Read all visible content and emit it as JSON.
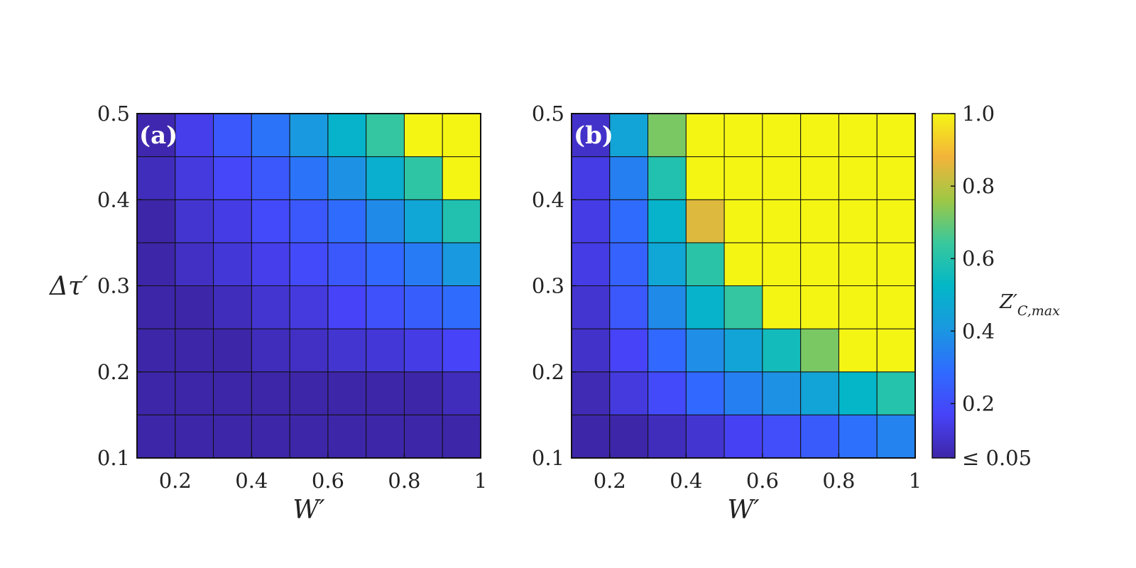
{
  "chart_data": [
    {
      "type": "heatmap",
      "panel_label": "(a)",
      "xlabel": "W′",
      "ylabel": "Δτ′",
      "x_ticks": [
        "0.2",
        "0.4",
        "0.6",
        "0.8",
        "1"
      ],
      "y_ticks": [
        "0.1",
        "0.2",
        "0.3",
        "0.4",
        "0.5"
      ],
      "xlim": [
        0.1,
        1.0
      ],
      "ylim": [
        0.1,
        0.5
      ],
      "x": [
        0.15,
        0.25,
        0.35,
        0.45,
        0.55,
        0.65,
        0.75,
        0.85,
        0.95
      ],
      "y": [
        0.125,
        0.175,
        0.225,
        0.275,
        0.325,
        0.375,
        0.425,
        0.475
      ],
      "values": [
        [
          0.05,
          0.05,
          0.05,
          0.05,
          0.05,
          0.05,
          0.05,
          0.05,
          0.05
        ],
        [
          0.05,
          0.05,
          0.05,
          0.05,
          0.05,
          0.05,
          0.05,
          0.05,
          0.08
        ],
        [
          0.05,
          0.05,
          0.05,
          0.08,
          0.09,
          0.11,
          0.12,
          0.14,
          0.17
        ],
        [
          0.05,
          0.05,
          0.08,
          0.11,
          0.13,
          0.17,
          0.21,
          0.25,
          0.29
        ],
        [
          0.05,
          0.09,
          0.12,
          0.15,
          0.19,
          0.23,
          0.28,
          0.33,
          0.41
        ],
        [
          0.05,
          0.11,
          0.14,
          0.19,
          0.23,
          0.29,
          0.37,
          0.46,
          0.59
        ],
        [
          0.08,
          0.13,
          0.18,
          0.23,
          0.31,
          0.39,
          0.49,
          0.62,
          1.0
        ],
        [
          0.06,
          0.15,
          0.23,
          0.31,
          0.41,
          0.51,
          0.63,
          1.0,
          1.0
        ]
      ],
      "grid": true
    },
    {
      "type": "heatmap",
      "panel_label": "(b)",
      "xlabel": "W′",
      "ylabel": "",
      "x_ticks": [
        "0.2",
        "0.4",
        "0.6",
        "0.8",
        "1"
      ],
      "y_ticks": [
        "0.1",
        "0.2",
        "0.3",
        "0.4",
        "0.5"
      ],
      "xlim": [
        0.1,
        1.0
      ],
      "ylim": [
        0.1,
        0.5
      ],
      "x": [
        0.15,
        0.25,
        0.35,
        0.45,
        0.55,
        0.65,
        0.75,
        0.85,
        0.95
      ],
      "y": [
        0.125,
        0.175,
        0.225,
        0.275,
        0.325,
        0.375,
        0.425,
        0.475
      ],
      "values": [
        [
          0.05,
          0.05,
          0.08,
          0.11,
          0.16,
          0.2,
          0.24,
          0.3,
          0.35
        ],
        [
          0.07,
          0.13,
          0.19,
          0.28,
          0.34,
          0.39,
          0.45,
          0.52,
          0.6
        ],
        [
          0.1,
          0.17,
          0.28,
          0.38,
          0.45,
          0.56,
          0.72,
          1.0,
          1.0
        ],
        [
          0.11,
          0.23,
          0.37,
          0.51,
          0.63,
          1.0,
          1.0,
          1.0,
          1.0
        ],
        [
          0.14,
          0.26,
          0.46,
          0.61,
          1.0,
          1.0,
          1.0,
          1.0,
          1.0
        ],
        [
          0.14,
          0.29,
          0.51,
          0.85,
          1.0,
          1.0,
          1.0,
          1.0,
          1.0
        ],
        [
          0.14,
          0.34,
          0.59,
          1.0,
          1.0,
          1.0,
          1.0,
          1.0,
          1.0
        ],
        [
          0.1,
          0.45,
          0.72,
          1.0,
          1.0,
          1.0,
          1.0,
          1.0,
          1.0
        ]
      ],
      "grid": true
    }
  ],
  "colorbar": {
    "label": "Z′C,max",
    "colormap": "parula",
    "range": [
      0.05,
      1.0
    ],
    "tick_values": [
      0.05,
      0.2,
      0.4,
      0.6,
      0.8,
      1.0
    ],
    "tick_labels": [
      "≤ 0.05",
      "0.2",
      "0.4",
      "0.6",
      "0.8",
      "1.0"
    ]
  }
}
